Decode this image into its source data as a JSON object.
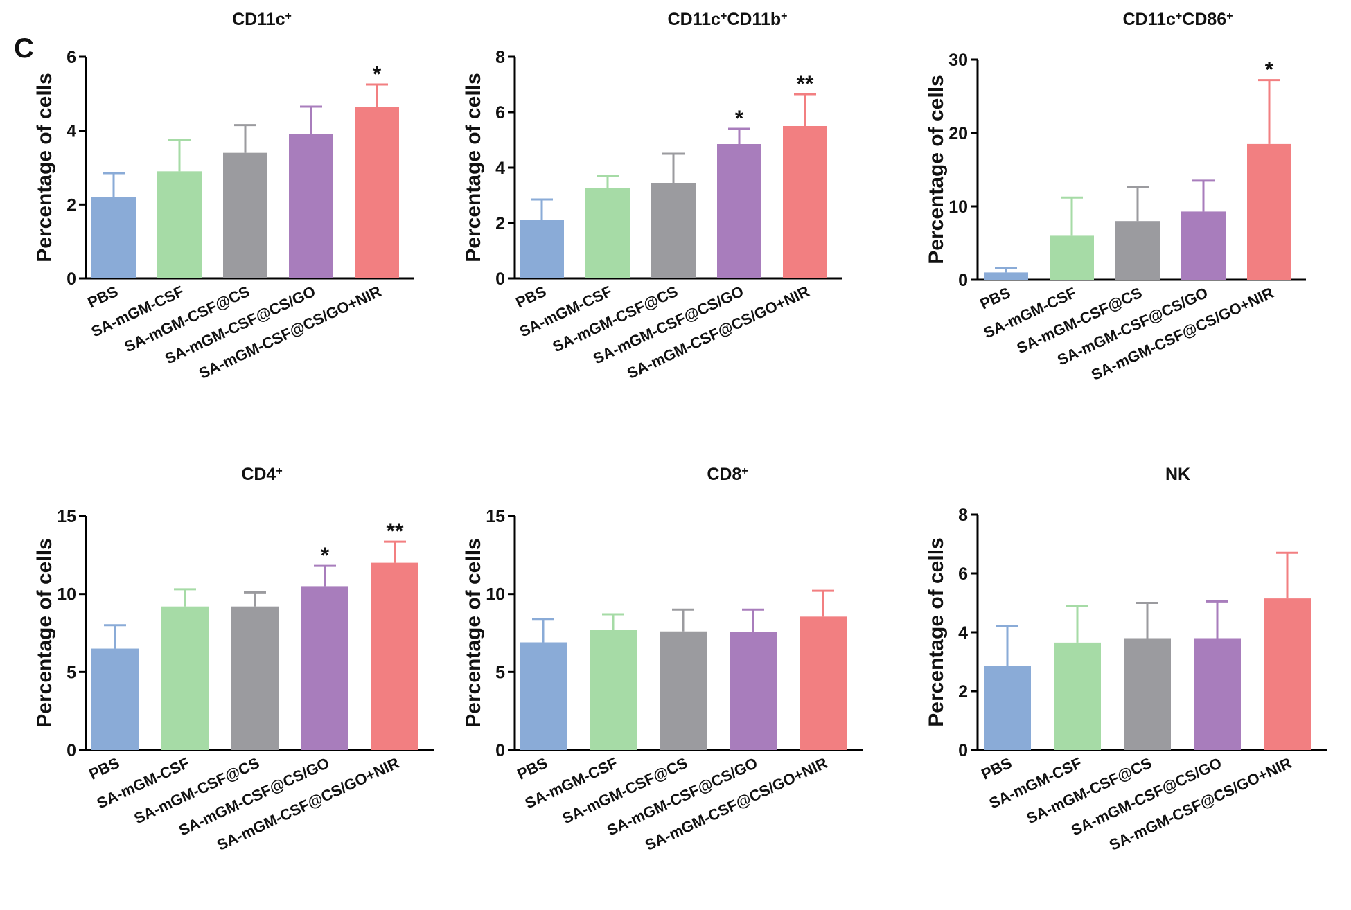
{
  "figure": {
    "panel_label": "C"
  },
  "colors": {
    "axis": "#000000",
    "bars": [
      "#8aabd7",
      "#a6dba6",
      "#9b9b9f",
      "#a87dbc",
      "#f27f81"
    ]
  },
  "chart_data": [
    {
      "type": "bar",
      "title_base": "CD11c",
      "title_sup": "+",
      "title_base2": "",
      "title_sup2": "",
      "ylabel": "Percentage of  cells",
      "categories": [
        "PBS",
        "SA-mGM-CSF",
        "SA-mGM-CSF@CS",
        "SA-mGM-CSF@CS/GO",
        "SA-mGM-CSF@CS/GO+NIR"
      ],
      "values": [
        2.2,
        2.9,
        3.4,
        3.9,
        4.65
      ],
      "errors": [
        0.65,
        0.85,
        0.75,
        0.75,
        0.6
      ],
      "significance": [
        "",
        "",
        "",
        "",
        "*"
      ],
      "ylim": [
        0,
        6
      ],
      "yticks": [
        0,
        2,
        4,
        6
      ]
    },
    {
      "type": "bar",
      "title_base": "CD11c",
      "title_sup": "+",
      "title_base2": "CD11b",
      "title_sup2": "+",
      "ylabel": "Percentage of  cells",
      "categories": [
        "PBS",
        "SA-mGM-CSF",
        "SA-mGM-CSF@CS",
        "SA-mGM-CSF@CS/GO",
        "SA-mGM-CSF@CS/GO+NIR"
      ],
      "values": [
        2.1,
        3.25,
        3.45,
        4.85,
        5.5
      ],
      "errors": [
        0.75,
        0.45,
        1.05,
        0.55,
        1.15
      ],
      "significance": [
        "",
        "",
        "",
        "*",
        "**"
      ],
      "ylim": [
        0,
        8
      ],
      "yticks": [
        0,
        2,
        4,
        6,
        8
      ]
    },
    {
      "type": "bar",
      "title_base": "CD11c",
      "title_sup": "+",
      "title_base2": "CD86",
      "title_sup2": "+",
      "ylabel": "Percentage of  cells",
      "categories": [
        "PBS",
        "SA-mGM-CSF",
        "SA-mGM-CSF@CS",
        "SA-mGM-CSF@CS/GO",
        "SA-mGM-CSF@CS/GO+NIR"
      ],
      "values": [
        1.0,
        6.0,
        8.0,
        9.3,
        18.5
      ],
      "errors": [
        0.6,
        5.2,
        4.6,
        4.2,
        8.7
      ],
      "significance": [
        "",
        "",
        "",
        "",
        "*"
      ],
      "ylim": [
        0,
        30
      ],
      "yticks": [
        0,
        10,
        20,
        30
      ]
    },
    {
      "type": "bar",
      "title_base": "CD4",
      "title_sup": "+",
      "title_base2": "",
      "title_sup2": "",
      "ylabel": "Percentage of cells",
      "categories": [
        "PBS",
        "SA-mGM-CSF",
        "SA-mGM-CSF@CS",
        "SA-mGM-CSF@CS/GO",
        "SA-mGM-CSF@CS/GO+NIR"
      ],
      "values": [
        6.5,
        9.2,
        9.2,
        10.5,
        12.0
      ],
      "errors": [
        1.5,
        1.1,
        0.9,
        1.3,
        1.35
      ],
      "significance": [
        "",
        "",
        "",
        "*",
        "**"
      ],
      "ylim": [
        0,
        15
      ],
      "yticks": [
        0,
        5,
        10,
        15
      ]
    },
    {
      "type": "bar",
      "title_base": "CD8",
      "title_sup": "+",
      "title_base2": "",
      "title_sup2": "",
      "ylabel": "Percentage of  cells",
      "categories": [
        "PBS",
        "SA-mGM-CSF",
        "SA-mGM-CSF@CS",
        "SA-mGM-CSF@CS/GO",
        "SA-mGM-CSF@CS/GO+NIR"
      ],
      "values": [
        6.9,
        7.7,
        7.6,
        7.55,
        8.55
      ],
      "errors": [
        1.5,
        1.0,
        1.4,
        1.45,
        1.65
      ],
      "significance": [
        "",
        "",
        "",
        "",
        ""
      ],
      "ylim": [
        0,
        15
      ],
      "yticks": [
        0,
        5,
        10,
        15
      ]
    },
    {
      "type": "bar",
      "title_base": "NK",
      "title_sup": "",
      "title_base2": "",
      "title_sup2": "",
      "ylabel": "Percentage of cells",
      "categories": [
        "PBS",
        "SA-mGM-CSF",
        "SA-mGM-CSF@CS",
        "SA-mGM-CSF@CS/GO",
        "SA-mGM-CSF@CS/GO+NIR"
      ],
      "values": [
        2.85,
        3.65,
        3.8,
        3.8,
        5.15
      ],
      "errors": [
        1.35,
        1.25,
        1.2,
        1.25,
        1.55
      ],
      "significance": [
        "",
        "",
        "",
        "",
        ""
      ],
      "ylim": [
        0,
        8
      ],
      "yticks": [
        0,
        2,
        4,
        6,
        8
      ]
    }
  ]
}
